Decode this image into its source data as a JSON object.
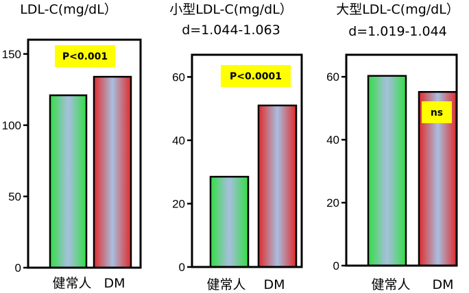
{
  "colors": {
    "annotation_box": "#ffff00",
    "frame": "#000000",
    "bar_green": "#33dd44",
    "bar_blue": "#a8bfe0",
    "bar_red": "#e02b2b"
  },
  "chart_data": [
    {
      "type": "bar",
      "title": "LDL-C(mg/dL）",
      "subtitle": "",
      "categories": [
        "健常人",
        "DM"
      ],
      "values": [
        121,
        134
      ],
      "ylim": [
        0,
        160
      ],
      "yticks": [
        0,
        50,
        100,
        150
      ],
      "annotation": "P<0.001",
      "gradient": [
        "bar_green",
        "bar_red"
      ]
    },
    {
      "type": "bar",
      "title": "小型LDL-C(mg/dL）",
      "subtitle": "d=1.044-1.063",
      "categories": [
        "健常人",
        "DM"
      ],
      "values": [
        28.5,
        51
      ],
      "ylim": [
        0,
        67
      ],
      "yticks": [
        0,
        20,
        40,
        60
      ],
      "annotation": "P<0.0001",
      "gradient": [
        "bar_green",
        "bar_red"
      ]
    },
    {
      "type": "bar",
      "title": "大型LDL-C(mg/dL）",
      "subtitle": "d=1.019-1.044",
      "categories": [
        "健常人",
        "DM"
      ],
      "values": [
        60.3,
        55.2
      ],
      "ylim": [
        0,
        67
      ],
      "yticks": [
        0,
        20,
        40,
        60
      ],
      "annotation": "ns",
      "gradient": [
        "bar_green",
        "bar_red"
      ]
    }
  ]
}
